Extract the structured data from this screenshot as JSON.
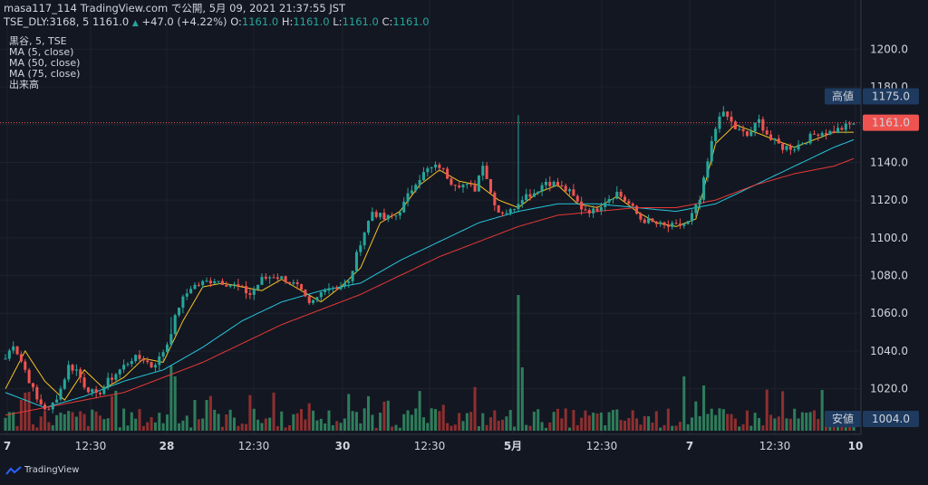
{
  "header": {
    "line1": "masa117_114 TradingView.com で公開, 5月 09, 2021 21:37:55 JST",
    "symbol": "TSE_DLY:3168, 5 1161.0",
    "change": "+47.0 (+4.22%)",
    "o_label": "O:",
    "o_value": "1161.0",
    "h_label": "H:",
    "h_value": "1161.0",
    "l_label": "L:",
    "l_value": "1161.0",
    "c_label": "C:",
    "c_value": "1161.0"
  },
  "legend": {
    "symbol_line": "黒谷, 5, TSE",
    "ma5": "MA (5, close)",
    "ma50": "MA (50, close)",
    "ma75": "MA (75, close)",
    "volume": "出来高"
  },
  "footer": {
    "brand": "TradingView"
  },
  "colors": {
    "background": "#131722",
    "up": "#26a69a",
    "down": "#ef5350",
    "ma5": "#f7c325",
    "ma50": "#26c6da",
    "ma75": "#e53935",
    "label_bg": "#1e3a5f"
  },
  "chart_data": {
    "type": "candlestick",
    "interval": "5",
    "ylim": [
      1004,
      1204
    ],
    "y_ticks": [
      "1200.0",
      "1180.0",
      "1160.0",
      "1140.0",
      "1120.0",
      "1100.0",
      "1080.0",
      "1060.0",
      "1040.0",
      "1020.0"
    ],
    "x_ticks": [
      "7",
      "12:30",
      "28",
      "12:30",
      "30",
      "12:30",
      "5月",
      "12:30",
      "7",
      "12:30",
      "10"
    ],
    "price_labels": [
      {
        "name": "高値",
        "value": "1175.0"
      },
      {
        "name": "current",
        "value": "1161.0"
      },
      {
        "name": "安値",
        "value": "1004.0"
      }
    ],
    "close_points": [
      [
        0,
        1036
      ],
      [
        2,
        1044
      ],
      [
        5,
        1030
      ],
      [
        8,
        1014
      ],
      [
        11,
        1008
      ],
      [
        14,
        1020
      ],
      [
        16,
        1032
      ],
      [
        18,
        1030
      ],
      [
        20,
        1022
      ],
      [
        23,
        1016
      ],
      [
        26,
        1024
      ],
      [
        29,
        1030
      ],
      [
        32,
        1036
      ],
      [
        35,
        1036
      ],
      [
        37,
        1032
      ],
      [
        39,
        1036
      ],
      [
        41,
        1044
      ],
      [
        44,
        1064
      ],
      [
        47,
        1074
      ],
      [
        50,
        1076
      ],
      [
        53,
        1078
      ],
      [
        56,
        1076
      ],
      [
        59,
        1074
      ],
      [
        62,
        1070
      ],
      [
        65,
        1078
      ],
      [
        68,
        1080
      ],
      [
        71,
        1078
      ],
      [
        74,
        1074
      ],
      [
        77,
        1064
      ],
      [
        79,
        1068
      ],
      [
        81,
        1074
      ],
      [
        84,
        1074
      ],
      [
        87,
        1076
      ],
      [
        90,
        1098
      ],
      [
        93,
        1114
      ],
      [
        96,
        1110
      ],
      [
        99,
        1112
      ],
      [
        101,
        1118
      ],
      [
        104,
        1130
      ],
      [
        107,
        1136
      ],
      [
        110,
        1138
      ],
      [
        113,
        1130
      ],
      [
        116,
        1128
      ],
      [
        119,
        1126
      ],
      [
        121,
        1140
      ],
      [
        123,
        1124
      ],
      [
        125,
        1114
      ],
      [
        128,
        1114
      ],
      [
        131,
        1122
      ],
      [
        134,
        1124
      ],
      [
        137,
        1130
      ],
      [
        140,
        1128
      ],
      [
        143,
        1124
      ],
      [
        146,
        1116
      ],
      [
        149,
        1114
      ],
      [
        152,
        1120
      ],
      [
        155,
        1124
      ],
      [
        158,
        1118
      ],
      [
        161,
        1110
      ],
      [
        164,
        1108
      ],
      [
        167,
        1106
      ],
      [
        170,
        1106
      ],
      [
        173,
        1108
      ],
      [
        176,
        1120
      ],
      [
        179,
        1150
      ],
      [
        181,
        1166
      ],
      [
        183,
        1164
      ],
      [
        185,
        1158
      ],
      [
        188,
        1154
      ],
      [
        191,
        1162
      ],
      [
        194,
        1152
      ],
      [
        197,
        1148
      ],
      [
        200,
        1148
      ],
      [
        203,
        1152
      ],
      [
        206,
        1156
      ],
      [
        209,
        1156
      ],
      [
        212,
        1158
      ],
      [
        215,
        1161
      ]
    ],
    "ma5_points": [
      [
        0,
        1020
      ],
      [
        5,
        1040
      ],
      [
        10,
        1024
      ],
      [
        15,
        1014
      ],
      [
        20,
        1030
      ],
      [
        25,
        1020
      ],
      [
        30,
        1026
      ],
      [
        35,
        1036
      ],
      [
        40,
        1034
      ],
      [
        45,
        1056
      ],
      [
        50,
        1074
      ],
      [
        55,
        1076
      ],
      [
        60,
        1074
      ],
      [
        65,
        1072
      ],
      [
        70,
        1078
      ],
      [
        75,
        1072
      ],
      [
        80,
        1066
      ],
      [
        85,
        1074
      ],
      [
        90,
        1084
      ],
      [
        95,
        1108
      ],
      [
        100,
        1114
      ],
      [
        105,
        1128
      ],
      [
        110,
        1136
      ],
      [
        115,
        1130
      ],
      [
        120,
        1128
      ],
      [
        125,
        1120
      ],
      [
        130,
        1116
      ],
      [
        135,
        1124
      ],
      [
        140,
        1128
      ],
      [
        145,
        1118
      ],
      [
        150,
        1116
      ],
      [
        155,
        1122
      ],
      [
        160,
        1114
      ],
      [
        165,
        1108
      ],
      [
        170,
        1106
      ],
      [
        175,
        1110
      ],
      [
        180,
        1150
      ],
      [
        185,
        1160
      ],
      [
        190,
        1156
      ],
      [
        195,
        1152
      ],
      [
        200,
        1148
      ],
      [
        205,
        1152
      ],
      [
        210,
        1156
      ],
      [
        215,
        1156
      ]
    ],
    "ma50_points": [
      [
        0,
        1018
      ],
      [
        10,
        1010
      ],
      [
        20,
        1016
      ],
      [
        30,
        1024
      ],
      [
        40,
        1030
      ],
      [
        50,
        1042
      ],
      [
        60,
        1056
      ],
      [
        70,
        1066
      ],
      [
        80,
        1072
      ],
      [
        90,
        1076
      ],
      [
        100,
        1088
      ],
      [
        110,
        1098
      ],
      [
        120,
        1108
      ],
      [
        130,
        1114
      ],
      [
        140,
        1118
      ],
      [
        150,
        1118
      ],
      [
        160,
        1116
      ],
      [
        170,
        1114
      ],
      [
        180,
        1118
      ],
      [
        190,
        1128
      ],
      [
        200,
        1138
      ],
      [
        210,
        1148
      ],
      [
        215,
        1152
      ]
    ],
    "ma75_points": [
      [
        0,
        1006
      ],
      [
        10,
        1010
      ],
      [
        20,
        1014
      ],
      [
        30,
        1018
      ],
      [
        40,
        1026
      ],
      [
        50,
        1034
      ],
      [
        60,
        1044
      ],
      [
        70,
        1054
      ],
      [
        80,
        1062
      ],
      [
        90,
        1070
      ],
      [
        100,
        1080
      ],
      [
        110,
        1090
      ],
      [
        120,
        1098
      ],
      [
        130,
        1106
      ],
      [
        140,
        1112
      ],
      [
        150,
        1114
      ],
      [
        160,
        1116
      ],
      [
        170,
        1116
      ],
      [
        180,
        1120
      ],
      [
        190,
        1128
      ],
      [
        200,
        1134
      ],
      [
        210,
        1138
      ],
      [
        215,
        1142
      ]
    ],
    "volume_spikes": [
      [
        42,
        72
      ],
      [
        43,
        60
      ],
      [
        130,
        150
      ],
      [
        131,
        70
      ],
      [
        172,
        60
      ],
      [
        177,
        50
      ]
    ]
  }
}
